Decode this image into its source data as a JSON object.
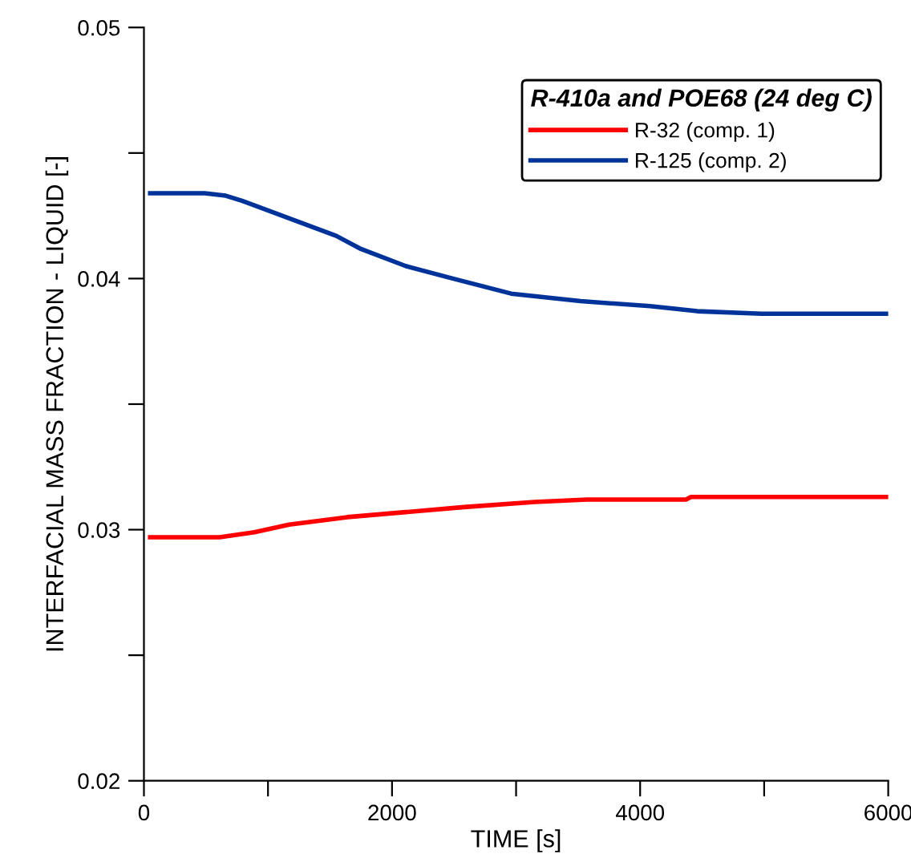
{
  "chart_data": {
    "type": "line",
    "xlabel": "TIME [s]",
    "ylabel": "INTERFACIAL MASS FRACTION - LIQUID [-]",
    "legend_title": "R-410a and POE68 (24 deg C)",
    "series": [
      {
        "name": "R-32 (comp. 1)",
        "color": "#ff0000",
        "x": [
          50,
          610,
          890,
          1170,
          1640,
          2110,
          2580,
          3150,
          3570,
          4370,
          4410,
          6000
        ],
        "values": [
          0.0297,
          0.0297,
          0.0299,
          0.0302,
          0.0305,
          0.0307,
          0.0309,
          0.0311,
          0.0312,
          0.0312,
          0.0313,
          0.0313
        ]
      },
      {
        "name": "R-125 (comp. 2)",
        "color": "#003399",
        "x": [
          50,
          490,
          660,
          790,
          1550,
          1740,
          2110,
          2490,
          2960,
          3520,
          4080,
          4460,
          4980,
          6000
        ],
        "values": [
          0.0434,
          0.0434,
          0.0433,
          0.0431,
          0.0417,
          0.0412,
          0.0405,
          0.04,
          0.0394,
          0.0391,
          0.0389,
          0.0387,
          0.0386,
          0.0386
        ]
      }
    ],
    "xlim": [
      0,
      6000
    ],
    "ylim": [
      0.02,
      0.05
    ],
    "xticks": [
      0,
      {
        "value": 1000,
        "label": null
      },
      2000,
      {
        "value": 3000,
        "label": null
      },
      4000,
      {
        "value": 5000,
        "label": null
      },
      6000
    ],
    "yticks": [
      0.02,
      {
        "value": 0.025,
        "label": null
      },
      0.03,
      {
        "value": 0.035,
        "label": null
      },
      0.04,
      {
        "value": 0.045,
        "label": null
      },
      0.05
    ],
    "grid": false,
    "legend": "top right",
    "line_style": "solid",
    "marker": "none"
  }
}
